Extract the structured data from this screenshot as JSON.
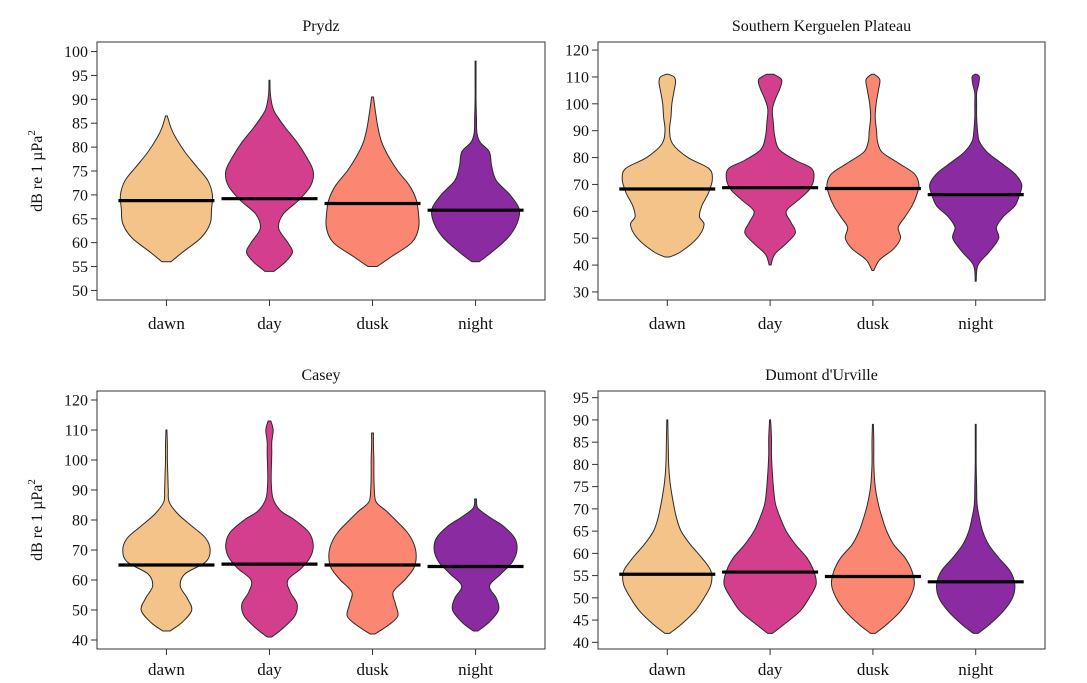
{
  "chart_data": [
    {
      "type": "violin",
      "title": "Prydz",
      "ylabel": "dB re 1 µPa",
      "ylabel_sup": "2",
      "ylim": [
        48,
        102
      ],
      "yticks": [
        50,
        55,
        60,
        65,
        70,
        75,
        80,
        85,
        90,
        95,
        100
      ],
      "categories": [
        "dawn",
        "day",
        "dusk",
        "night"
      ],
      "colors": [
        "#f4c38a",
        "#d43f8d",
        "#fb8772",
        "#8a2ba1"
      ],
      "medians": [
        68.8,
        69.2,
        68.2,
        66.8
      ],
      "violins": [
        [
          [
            56,
            0.1
          ],
          [
            58,
            0.35
          ],
          [
            61,
            0.75
          ],
          [
            64,
            0.95
          ],
          [
            67,
            0.98
          ],
          [
            70,
            1.0
          ],
          [
            73,
            0.9
          ],
          [
            76,
            0.65
          ],
          [
            79,
            0.4
          ],
          [
            82,
            0.2
          ],
          [
            84,
            0.1
          ],
          [
            86.5,
            0.02
          ]
        ],
        [
          [
            54,
            0.1
          ],
          [
            56,
            0.35
          ],
          [
            58,
            0.5
          ],
          [
            60,
            0.4
          ],
          [
            63,
            0.2
          ],
          [
            66,
            0.3
          ],
          [
            69,
            0.65
          ],
          [
            72,
            0.9
          ],
          [
            75,
            0.95
          ],
          [
            78,
            0.8
          ],
          [
            81,
            0.6
          ],
          [
            84,
            0.35
          ],
          [
            86,
            0.2
          ],
          [
            88,
            0.08
          ],
          [
            91,
            0.02
          ],
          [
            94,
            0.01
          ]
        ],
        [
          [
            55,
            0.1
          ],
          [
            57,
            0.4
          ],
          [
            60,
            0.85
          ],
          [
            63,
            1.0
          ],
          [
            66,
            1.0
          ],
          [
            69,
            0.95
          ],
          [
            72,
            0.8
          ],
          [
            75,
            0.55
          ],
          [
            78,
            0.35
          ],
          [
            81,
            0.2
          ],
          [
            84,
            0.12
          ],
          [
            87,
            0.07
          ],
          [
            90.5,
            0.02
          ]
        ],
        [
          [
            56,
            0.08
          ],
          [
            58,
            0.35
          ],
          [
            61,
            0.7
          ],
          [
            64,
            0.9
          ],
          [
            67,
            0.95
          ],
          [
            70,
            0.75
          ],
          [
            73,
            0.45
          ],
          [
            76,
            0.35
          ],
          [
            79,
            0.3
          ],
          [
            81,
            0.1
          ],
          [
            83,
            0.03
          ],
          [
            86,
            0.02
          ],
          [
            90,
            0.01
          ],
          [
            94,
            0.01
          ],
          [
            98,
            0.01
          ]
        ]
      ]
    },
    {
      "type": "violin",
      "title": "Southern Kerguelen Plateau",
      "ylabel": "",
      "ylim": [
        27,
        123
      ],
      "yticks": [
        30,
        40,
        50,
        60,
        70,
        80,
        90,
        100,
        110,
        120
      ],
      "categories": [
        "dawn",
        "day",
        "dusk",
        "night"
      ],
      "colors": [
        "#f4c38a",
        "#d43f8d",
        "#fb8772",
        "#8a2ba1"
      ],
      "medians": [
        68.3,
        68.8,
        68.5,
        66.2
      ],
      "violins": [
        [
          [
            43,
            0.05
          ],
          [
            45,
            0.3
          ],
          [
            50,
            0.65
          ],
          [
            55,
            0.8
          ],
          [
            58,
            0.7
          ],
          [
            62,
            0.75
          ],
          [
            67,
            0.9
          ],
          [
            72,
            0.98
          ],
          [
            76,
            0.9
          ],
          [
            80,
            0.45
          ],
          [
            85,
            0.12
          ],
          [
            90,
            0.05
          ],
          [
            95,
            0.08
          ],
          [
            100,
            0.1
          ],
          [
            105,
            0.15
          ],
          [
            108,
            0.18
          ],
          [
            110,
            0.15
          ],
          [
            111,
            0.02
          ]
        ],
        [
          [
            40,
            0.02
          ],
          [
            44,
            0.1
          ],
          [
            48,
            0.35
          ],
          [
            52,
            0.55
          ],
          [
            56,
            0.45
          ],
          [
            60,
            0.35
          ],
          [
            64,
            0.6
          ],
          [
            68,
            0.85
          ],
          [
            72,
            0.95
          ],
          [
            76,
            0.9
          ],
          [
            79,
            0.55
          ],
          [
            83,
            0.2
          ],
          [
            88,
            0.1
          ],
          [
            93,
            0.07
          ],
          [
            98,
            0.05
          ],
          [
            102,
            0.12
          ],
          [
            106,
            0.22
          ],
          [
            109,
            0.25
          ],
          [
            111,
            0.08
          ]
        ],
        [
          [
            38,
            0.02
          ],
          [
            42,
            0.15
          ],
          [
            46,
            0.45
          ],
          [
            50,
            0.6
          ],
          [
            54,
            0.55
          ],
          [
            58,
            0.7
          ],
          [
            62,
            0.85
          ],
          [
            66,
            0.95
          ],
          [
            70,
            1.0
          ],
          [
            74,
            0.9
          ],
          [
            78,
            0.55
          ],
          [
            82,
            0.2
          ],
          [
            86,
            0.1
          ],
          [
            90,
            0.08
          ],
          [
            95,
            0.05
          ],
          [
            100,
            0.07
          ],
          [
            105,
            0.12
          ],
          [
            109,
            0.15
          ],
          [
            111,
            0.03
          ]
        ],
        [
          [
            34,
            0.01
          ],
          [
            40,
            0.05
          ],
          [
            45,
            0.3
          ],
          [
            50,
            0.5
          ],
          [
            54,
            0.45
          ],
          [
            58,
            0.6
          ],
          [
            62,
            0.85
          ],
          [
            66,
            0.95
          ],
          [
            70,
            1.0
          ],
          [
            74,
            0.85
          ],
          [
            78,
            0.55
          ],
          [
            82,
            0.25
          ],
          [
            86,
            0.08
          ],
          [
            90,
            0.04
          ],
          [
            95,
            0.02
          ],
          [
            100,
            0.02
          ],
          [
            104,
            0.02
          ],
          [
            107,
            0.06
          ],
          [
            110,
            0.08
          ],
          [
            111,
            0.02
          ]
        ]
      ]
    },
    {
      "type": "violin",
      "title": "Casey",
      "ylabel": "dB re 1 µPa",
      "ylabel_sup": "2",
      "ylim": [
        37,
        123
      ],
      "yticks": [
        40,
        50,
        60,
        70,
        80,
        90,
        100,
        110,
        120
      ],
      "categories": [
        "dawn",
        "day",
        "dusk",
        "night"
      ],
      "colors": [
        "#f4c38a",
        "#d43f8d",
        "#fb8772",
        "#8a2ba1"
      ],
      "medians": [
        65,
        65.3,
        65,
        64.5
      ],
      "violins": [
        [
          [
            43,
            0.08
          ],
          [
            46,
            0.35
          ],
          [
            50,
            0.55
          ],
          [
            54,
            0.45
          ],
          [
            58,
            0.3
          ],
          [
            62,
            0.4
          ],
          [
            66,
            0.85
          ],
          [
            70,
            0.95
          ],
          [
            74,
            0.85
          ],
          [
            78,
            0.55
          ],
          [
            82,
            0.25
          ],
          [
            86,
            0.06
          ],
          [
            90,
            0.04
          ],
          [
            95,
            0.03
          ],
          [
            100,
            0.02
          ],
          [
            105,
            0.02
          ],
          [
            110,
            0.01
          ]
        ],
        [
          [
            41,
            0.05
          ],
          [
            44,
            0.3
          ],
          [
            48,
            0.55
          ],
          [
            52,
            0.6
          ],
          [
            56,
            0.45
          ],
          [
            60,
            0.4
          ],
          [
            64,
            0.7
          ],
          [
            68,
            0.9
          ],
          [
            72,
            0.95
          ],
          [
            76,
            0.85
          ],
          [
            80,
            0.55
          ],
          [
            83,
            0.25
          ],
          [
            87,
            0.08
          ],
          [
            92,
            0.04
          ],
          [
            97,
            0.04
          ],
          [
            102,
            0.05
          ],
          [
            106,
            0.05
          ],
          [
            110,
            0.08
          ],
          [
            113,
            0.03
          ]
        ],
        [
          [
            42,
            0.05
          ],
          [
            45,
            0.35
          ],
          [
            48,
            0.55
          ],
          [
            52,
            0.5
          ],
          [
            56,
            0.45
          ],
          [
            60,
            0.7
          ],
          [
            64,
            0.9
          ],
          [
            68,
            0.95
          ],
          [
            72,
            0.9
          ],
          [
            76,
            0.75
          ],
          [
            80,
            0.5
          ],
          [
            83,
            0.3
          ],
          [
            86,
            0.08
          ],
          [
            90,
            0.04
          ],
          [
            95,
            0.03
          ],
          [
            100,
            0.03
          ],
          [
            105,
            0.02
          ],
          [
            109,
            0.02
          ]
        ],
        [
          [
            43,
            0.05
          ],
          [
            46,
            0.3
          ],
          [
            50,
            0.5
          ],
          [
            54,
            0.45
          ],
          [
            58,
            0.3
          ],
          [
            62,
            0.55
          ],
          [
            66,
            0.8
          ],
          [
            70,
            0.9
          ],
          [
            74,
            0.85
          ],
          [
            78,
            0.6
          ],
          [
            81,
            0.3
          ],
          [
            84,
            0.05
          ],
          [
            87,
            0.02
          ]
        ]
      ]
    },
    {
      "type": "violin",
      "title": "Dumont d'Urville",
      "ylabel": "",
      "ylim": [
        38.5,
        96.5
      ],
      "yticks": [
        40,
        45,
        50,
        55,
        60,
        65,
        70,
        75,
        80,
        85,
        90,
        95
      ],
      "categories": [
        "dawn",
        "day",
        "dusk",
        "night"
      ],
      "colors": [
        "#f4c38a",
        "#d43f8d",
        "#fb8772",
        "#8a2ba1"
      ],
      "medians": [
        55.3,
        55.8,
        54.8,
        53.6
      ],
      "violins": [
        [
          [
            42,
            0.05
          ],
          [
            44,
            0.3
          ],
          [
            47,
            0.6
          ],
          [
            50,
            0.8
          ],
          [
            53,
            0.95
          ],
          [
            56,
            0.95
          ],
          [
            59,
            0.75
          ],
          [
            62,
            0.5
          ],
          [
            65,
            0.3
          ],
          [
            68,
            0.2
          ],
          [
            72,
            0.12
          ],
          [
            76,
            0.06
          ],
          [
            80,
            0.03
          ],
          [
            85,
            0.02
          ],
          [
            90,
            0.01
          ]
        ],
        [
          [
            42,
            0.05
          ],
          [
            44,
            0.3
          ],
          [
            47,
            0.65
          ],
          [
            50,
            0.85
          ],
          [
            53,
            1.0
          ],
          [
            56,
            0.95
          ],
          [
            59,
            0.8
          ],
          [
            62,
            0.55
          ],
          [
            65,
            0.35
          ],
          [
            68,
            0.22
          ],
          [
            71,
            0.12
          ],
          [
            74,
            0.08
          ],
          [
            78,
            0.05
          ],
          [
            82,
            0.03
          ],
          [
            86,
            0.03
          ],
          [
            90,
            0.01
          ]
        ],
        [
          [
            42,
            0.05
          ],
          [
            44,
            0.3
          ],
          [
            47,
            0.6
          ],
          [
            50,
            0.8
          ],
          [
            53,
            0.9
          ],
          [
            56,
            0.85
          ],
          [
            59,
            0.7
          ],
          [
            62,
            0.45
          ],
          [
            65,
            0.3
          ],
          [
            68,
            0.2
          ],
          [
            71,
            0.12
          ],
          [
            75,
            0.05
          ],
          [
            80,
            0.02
          ],
          [
            85,
            0.02
          ],
          [
            89,
            0.01
          ]
        ],
        [
          [
            42,
            0.05
          ],
          [
            44,
            0.3
          ],
          [
            47,
            0.6
          ],
          [
            50,
            0.8
          ],
          [
            53,
            0.85
          ],
          [
            56,
            0.75
          ],
          [
            59,
            0.5
          ],
          [
            62,
            0.28
          ],
          [
            65,
            0.15
          ],
          [
            68,
            0.08
          ],
          [
            71,
            0.03
          ],
          [
            75,
            0.02
          ],
          [
            80,
            0.01
          ],
          [
            85,
            0.01
          ],
          [
            89,
            0.01
          ]
        ]
      ]
    }
  ]
}
